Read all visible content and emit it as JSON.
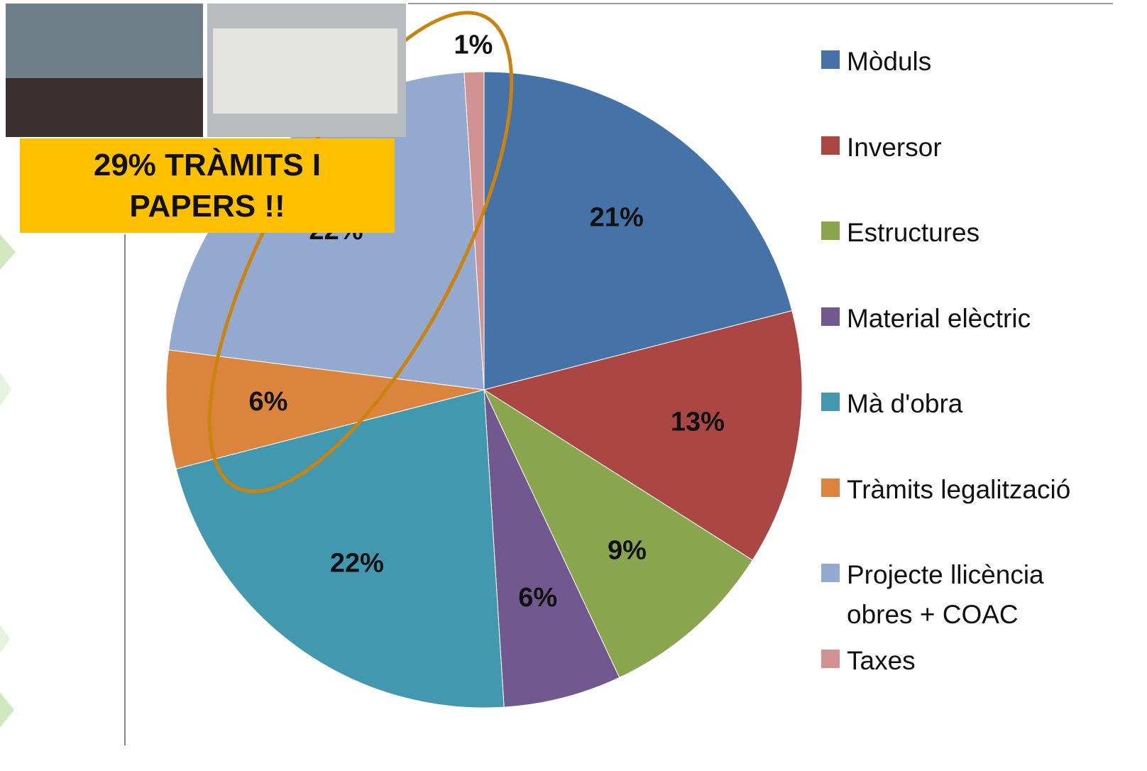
{
  "chart_data": {
    "type": "pie",
    "categories": [
      "Mòduls",
      "Inversor",
      "Estructures",
      "Material elèctric",
      "Mà d'obra",
      "Tràmits legalització",
      "Projecte llicència obres + COAC",
      "Taxes"
    ],
    "values": [
      21,
      13,
      9,
      6,
      22,
      6,
      22,
      1
    ],
    "value_labels": [
      "21%",
      "13%",
      "9%",
      "6%",
      "22%",
      "6%",
      "22%",
      "1%"
    ],
    "colors": [
      "#4572a7",
      "#aa4643",
      "#89a54e",
      "#71588f",
      "#4198af",
      "#db843d",
      "#93a9cf",
      "#d19392"
    ],
    "legend": "right",
    "annotation": "29% TRÀMITS I PAPERS !!"
  }
}
